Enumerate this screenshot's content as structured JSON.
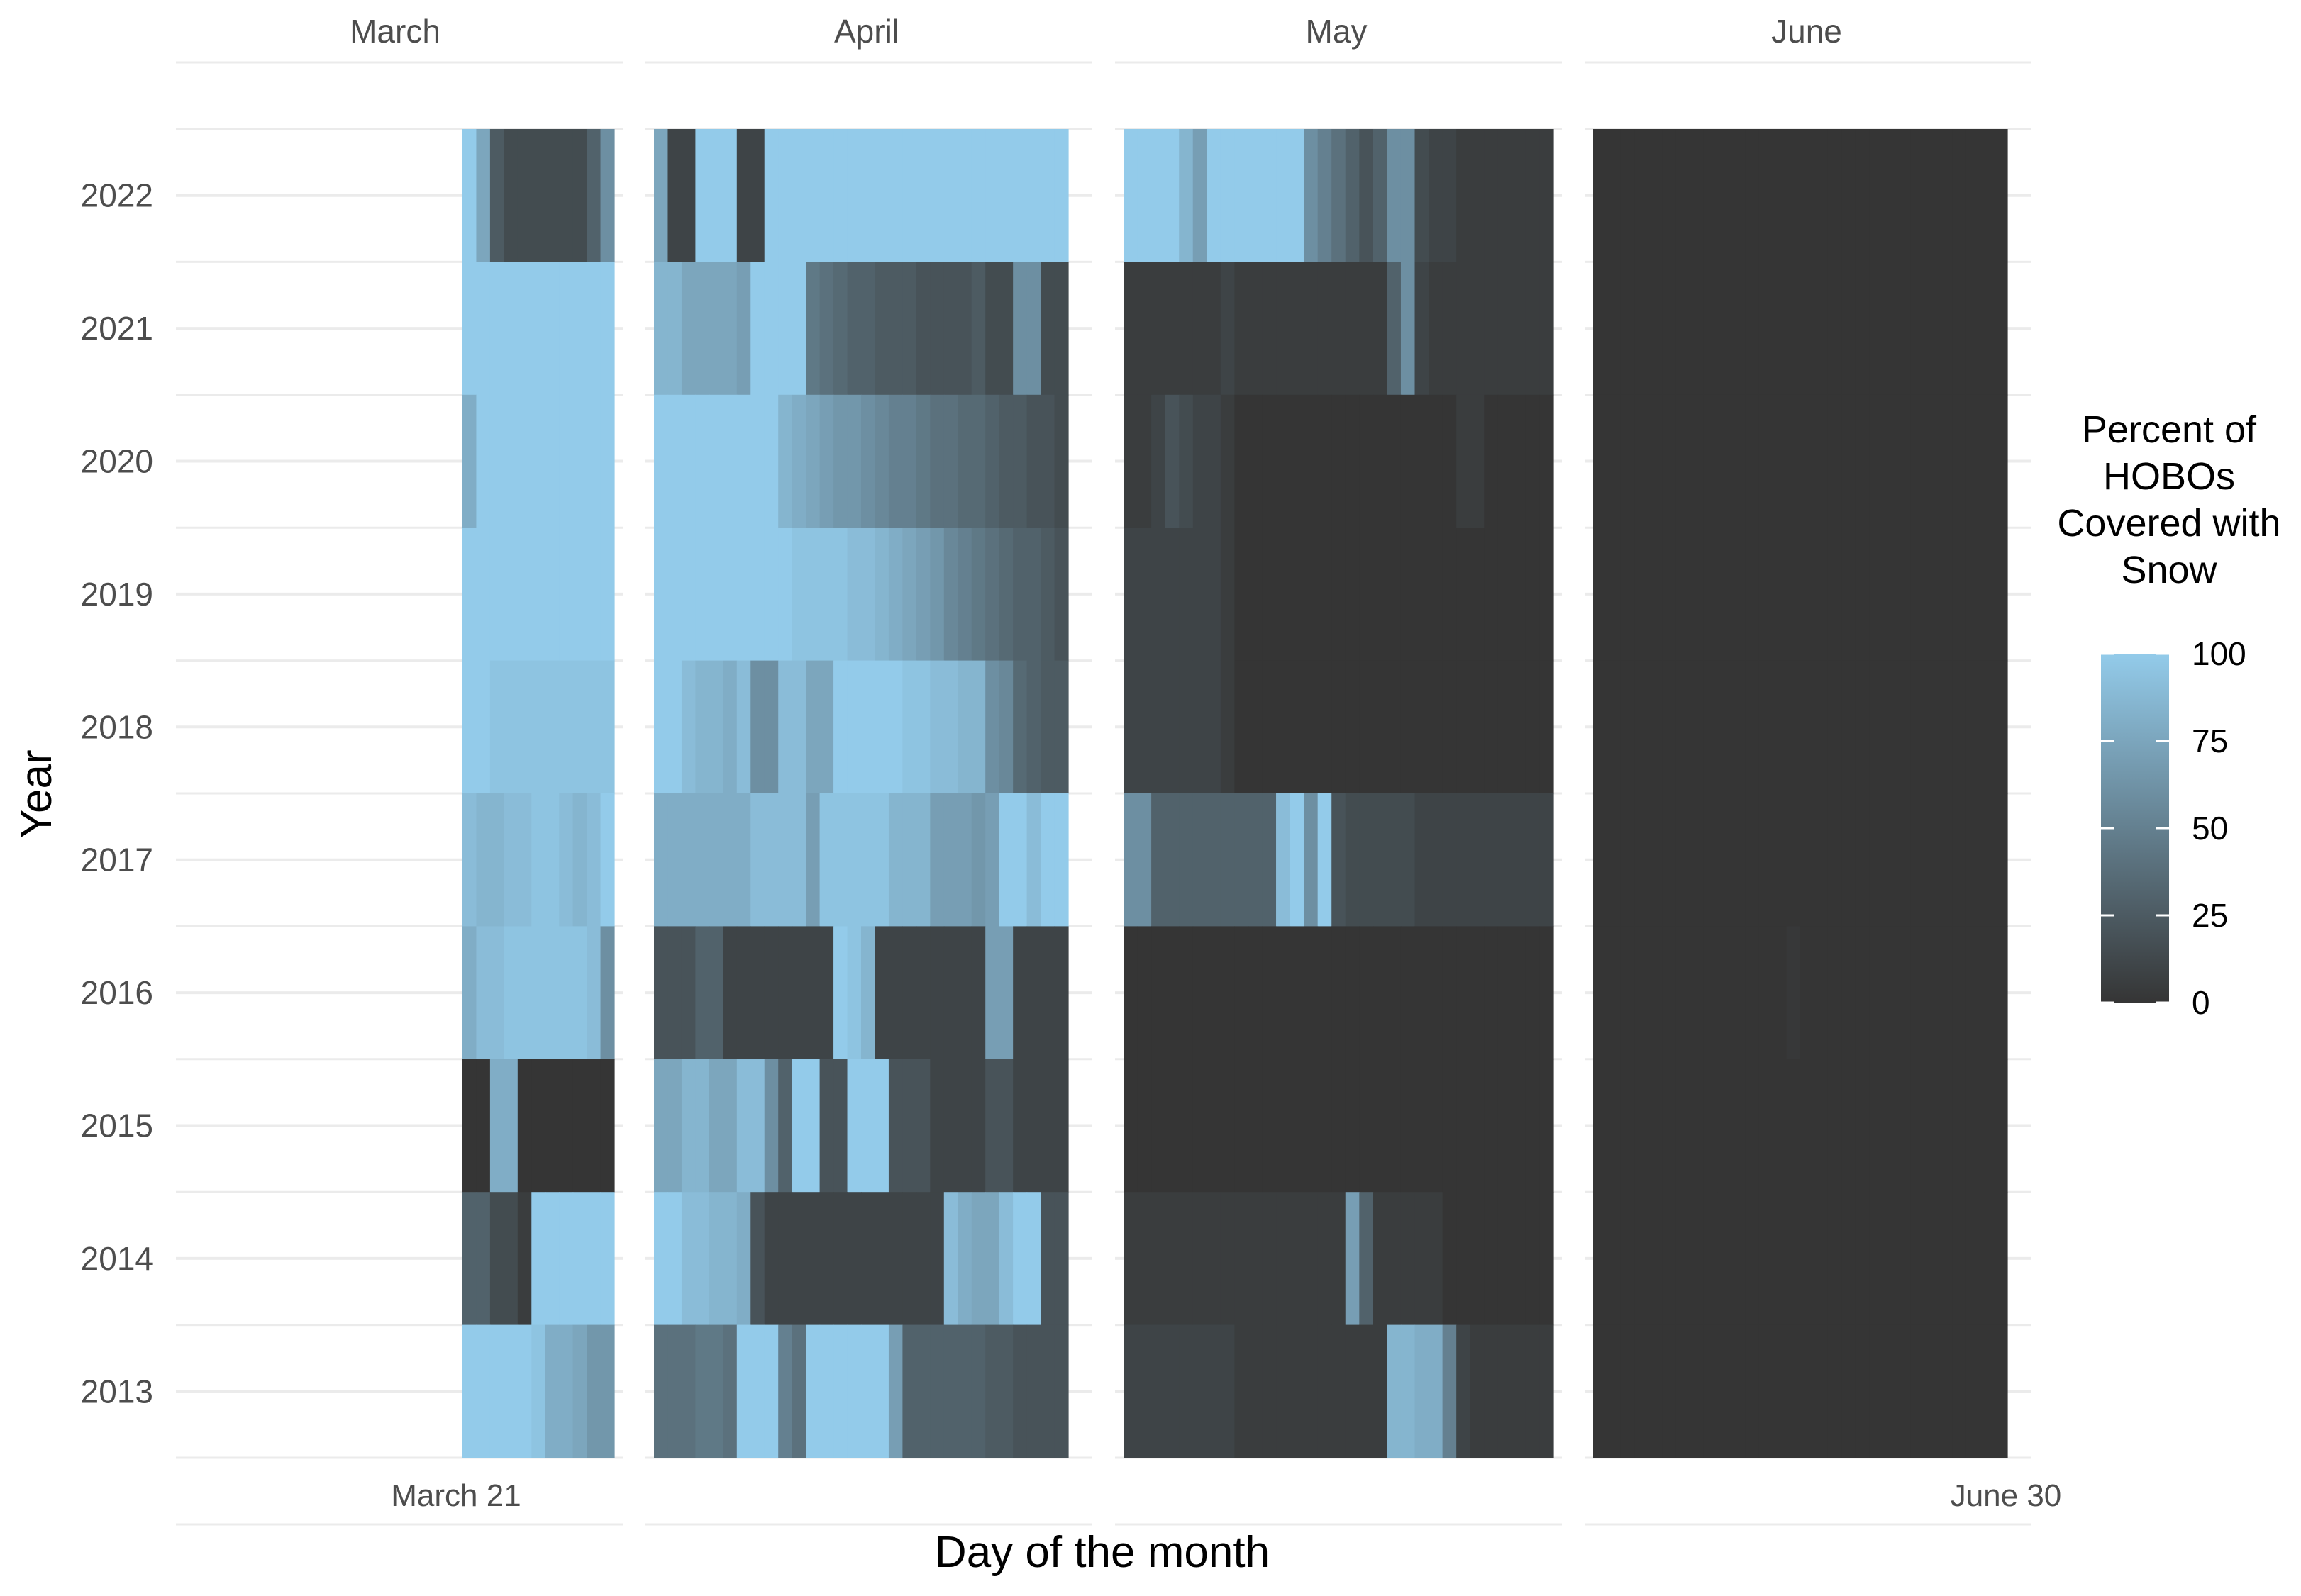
{
  "chart_data": {
    "type": "heatmap",
    "xlabel": "Day of the month",
    "ylabel": "Year",
    "facets": [
      "March",
      "April",
      "May",
      "June"
    ],
    "years": [
      "2013",
      "2014",
      "2015",
      "2016",
      "2017",
      "2018",
      "2019",
      "2020",
      "2021",
      "2022"
    ],
    "x_labels": {
      "start": "March 21",
      "end": "June 30"
    },
    "x_range": [
      "March 21",
      "June 30"
    ],
    "legend": {
      "title": [
        "Percent of",
        "HOBOs",
        "Covered with",
        "Snow"
      ],
      "ticks": [
        0,
        25,
        50,
        75,
        100
      ],
      "range": [
        0,
        100
      ],
      "low_color": "#353535",
      "high_color": "#93cbea",
      "position": "right"
    },
    "grid": true,
    "series": [
      {
        "year": "2022",
        "march": [
          100,
          75,
          25,
          15,
          15,
          15,
          15,
          15,
          15,
          30,
          60
        ],
        "april": [
          75,
          10,
          10,
          100,
          100,
          100,
          10,
          10,
          100,
          100,
          100,
          100,
          100,
          100,
          100,
          100,
          100,
          100,
          100,
          100,
          100,
          100,
          100,
          100,
          100,
          100,
          100,
          100,
          100,
          100
        ],
        "may": [
          100,
          100,
          100,
          100,
          85,
          70,
          100,
          100,
          100,
          100,
          100,
          100,
          100,
          60,
          50,
          40,
          30,
          20,
          30,
          60,
          60,
          15,
          10,
          10,
          5,
          5,
          5,
          5,
          5,
          5,
          5
        ],
        "june": [
          0,
          0,
          0,
          0,
          0,
          0,
          0,
          0,
          0,
          0,
          0,
          0,
          0,
          0,
          0,
          0,
          0,
          0,
          0,
          0,
          0,
          0,
          0,
          0,
          0,
          0,
          0,
          0,
          0,
          0
        ]
      },
      {
        "year": "2021",
        "march": [
          100,
          100,
          100,
          100,
          100,
          100,
          100,
          100,
          100,
          100,
          100
        ],
        "april": [
          85,
          85,
          75,
          75,
          75,
          75,
          70,
          100,
          100,
          100,
          100,
          45,
          40,
          35,
          30,
          30,
          25,
          25,
          25,
          20,
          20,
          20,
          20,
          25,
          15,
          15,
          60,
          60,
          15,
          15
        ],
        "may": [
          5,
          5,
          5,
          5,
          5,
          5,
          5,
          10,
          5,
          5,
          5,
          5,
          5,
          5,
          5,
          5,
          5,
          5,
          5,
          30,
          60,
          10,
          5,
          5,
          5,
          5,
          5,
          5,
          5,
          5,
          5
        ],
        "june": [
          0,
          0,
          0,
          0,
          0,
          0,
          0,
          0,
          0,
          0,
          0,
          0,
          0,
          0,
          0,
          0,
          0,
          0,
          0,
          0,
          0,
          0,
          0,
          0,
          0,
          0,
          0,
          0,
          0,
          0
        ]
      },
      {
        "year": "2020",
        "march": [
          80,
          100,
          100,
          100,
          100,
          100,
          100,
          100,
          100,
          100,
          100
        ],
        "april": [
          100,
          100,
          100,
          100,
          100,
          100,
          100,
          100,
          100,
          85,
          80,
          75,
          70,
          65,
          65,
          60,
          55,
          50,
          50,
          45,
          40,
          40,
          35,
          35,
          30,
          25,
          25,
          20,
          20,
          15
        ],
        "may": [
          5,
          5,
          10,
          20,
          15,
          10,
          10,
          5,
          0,
          0,
          0,
          0,
          0,
          0,
          0,
          0,
          0,
          0,
          0,
          0,
          0,
          0,
          0,
          0,
          5,
          5,
          0,
          0,
          0,
          0,
          0
        ],
        "june": [
          0,
          0,
          0,
          0,
          0,
          0,
          0,
          0,
          0,
          0,
          0,
          0,
          0,
          0,
          0,
          0,
          0,
          0,
          0,
          0,
          0,
          0,
          0,
          0,
          0,
          0,
          0,
          0,
          0,
          0
        ]
      },
      {
        "year": "2019",
        "march": [
          100,
          100,
          100,
          100,
          100,
          100,
          100,
          100,
          100,
          100,
          100
        ],
        "april": [
          100,
          100,
          100,
          100,
          100,
          100,
          100,
          100,
          100,
          100,
          95,
          95,
          95,
          95,
          90,
          90,
          85,
          80,
          75,
          70,
          65,
          55,
          50,
          45,
          40,
          35,
          30,
          30,
          25,
          20
        ],
        "may": [
          10,
          10,
          10,
          10,
          10,
          10,
          10,
          5,
          0,
          0,
          0,
          0,
          0,
          0,
          0,
          0,
          0,
          0,
          0,
          0,
          0,
          0,
          0,
          0,
          0,
          0,
          0,
          0,
          0,
          0,
          0
        ],
        "june": [
          0,
          0,
          0,
          0,
          0,
          0,
          0,
          0,
          0,
          0,
          0,
          0,
          0,
          0,
          0,
          0,
          0,
          0,
          0,
          0,
          0,
          0,
          0,
          0,
          0,
          0,
          0,
          0,
          0,
          0
        ]
      },
      {
        "year": "2018",
        "march": [
          100,
          100,
          95,
          95,
          95,
          95,
          95,
          95,
          95,
          95,
          95
        ],
        "april": [
          100,
          100,
          90,
          85,
          85,
          80,
          90,
          60,
          60,
          90,
          90,
          75,
          75,
          100,
          100,
          100,
          100,
          100,
          95,
          95,
          90,
          90,
          85,
          85,
          60,
          55,
          35,
          30,
          25,
          25
        ],
        "may": [
          10,
          10,
          10,
          10,
          10,
          10,
          10,
          5,
          0,
          0,
          0,
          0,
          0,
          0,
          0,
          0,
          0,
          0,
          0,
          0,
          0,
          0,
          0,
          0,
          0,
          0,
          0,
          0,
          0,
          0,
          0
        ],
        "june": [
          0,
          0,
          0,
          0,
          0,
          0,
          0,
          0,
          0,
          0,
          0,
          0,
          0,
          0,
          0,
          0,
          0,
          0,
          0,
          0,
          0,
          0,
          0,
          0,
          0,
          0,
          0,
          0,
          0,
          0
        ]
      },
      {
        "year": "2017",
        "march": [
          90,
          85,
          85,
          90,
          90,
          95,
          95,
          90,
          85,
          90,
          100
        ],
        "april": [
          80,
          80,
          80,
          80,
          80,
          80,
          80,
          90,
          90,
          90,
          90,
          70,
          95,
          95,
          95,
          95,
          95,
          85,
          85,
          85,
          70,
          70,
          70,
          65,
          70,
          100,
          100,
          90,
          100,
          100
        ],
        "may": [
          60,
          60,
          30,
          30,
          30,
          30,
          30,
          30,
          30,
          30,
          30,
          90,
          100,
          60,
          100,
          20,
          15,
          15,
          15,
          15,
          15,
          10,
          10,
          10,
          10,
          10,
          10,
          10,
          10,
          10,
          10
        ],
        "june": [
          0,
          0,
          0,
          0,
          0,
          0,
          0,
          0,
          0,
          0,
          0,
          0,
          0,
          0,
          0,
          0,
          0,
          0,
          0,
          0,
          0,
          0,
          0,
          0,
          0,
          0,
          0,
          0,
          0,
          0
        ]
      },
      {
        "year": "2016",
        "march": [
          80,
          90,
          90,
          95,
          95,
          95,
          95,
          95,
          95,
          90,
          60
        ],
        "april": [
          20,
          20,
          20,
          30,
          30,
          10,
          10,
          10,
          10,
          10,
          10,
          10,
          10,
          100,
          95,
          85,
          10,
          10,
          10,
          10,
          10,
          10,
          10,
          10,
          70,
          70,
          10,
          10,
          10,
          10
        ],
        "may": [
          0,
          0,
          0,
          0,
          0,
          0,
          0,
          0,
          0,
          0,
          0,
          0,
          0,
          0,
          0,
          0,
          0,
          0,
          0,
          0,
          0,
          0,
          0,
          0,
          0,
          0,
          0,
          0,
          0,
          0,
          0
        ],
        "june": [
          0,
          0,
          0,
          0,
          0,
          0,
          0,
          0,
          0,
          0,
          0,
          0,
          0,
          0,
          2,
          0,
          0,
          0,
          0,
          0,
          0,
          0,
          0,
          0,
          0,
          0,
          0,
          0,
          0,
          0
        ]
      },
      {
        "year": "2015",
        "march": [
          0,
          0,
          80,
          80,
          0,
          0,
          0,
          0,
          0,
          0,
          0
        ],
        "april": [
          75,
          75,
          85,
          85,
          75,
          75,
          90,
          90,
          60,
          30,
          100,
          100,
          20,
          20,
          100,
          100,
          100,
          20,
          20,
          20,
          10,
          10,
          10,
          10,
          20,
          20,
          10,
          10,
          10,
          10
        ],
        "may": [
          0,
          0,
          0,
          0,
          0,
          0,
          0,
          0,
          0,
          0,
          0,
          0,
          0,
          0,
          0,
          0,
          0,
          0,
          0,
          0,
          0,
          0,
          0,
          0,
          0,
          0,
          0,
          0,
          0,
          0,
          0
        ],
        "june": [
          0,
          0,
          0,
          0,
          0,
          0,
          0,
          0,
          0,
          0,
          0,
          0,
          0,
          0,
          0,
          0,
          0,
          0,
          0,
          0,
          0,
          0,
          0,
          0,
          0,
          0,
          0,
          0,
          0,
          0
        ]
      },
      {
        "year": "2014",
        "march": [
          30,
          30,
          15,
          15,
          5,
          100,
          100,
          100,
          100,
          100,
          100
        ],
        "april": [
          100,
          100,
          90,
          90,
          85,
          85,
          80,
          20,
          10,
          10,
          10,
          10,
          10,
          10,
          10,
          10,
          10,
          10,
          10,
          10,
          10,
          90,
          80,
          75,
          75,
          90,
          100,
          100,
          20,
          20
        ],
        "may": [
          5,
          5,
          5,
          5,
          5,
          5,
          5,
          5,
          5,
          5,
          5,
          5,
          5,
          5,
          5,
          5,
          70,
          30,
          5,
          5,
          5,
          5,
          5,
          0,
          0,
          0,
          0,
          0,
          0,
          0,
          0
        ],
        "june": [
          0,
          0,
          0,
          0,
          0,
          0,
          0,
          0,
          0,
          0,
          0,
          0,
          0,
          0,
          0,
          0,
          0,
          0,
          0,
          0,
          0,
          0,
          0,
          0,
          0,
          0,
          0,
          0,
          0,
          0
        ]
      },
      {
        "year": "2013",
        "march": [
          100,
          100,
          100,
          100,
          100,
          95,
          80,
          80,
          75,
          65,
          65
        ],
        "april": [
          40,
          40,
          40,
          45,
          45,
          40,
          100,
          100,
          100,
          50,
          40,
          100,
          100,
          100,
          100,
          100,
          100,
          70,
          30,
          30,
          30,
          30,
          30,
          30,
          25,
          25,
          20,
          20,
          20,
          20
        ],
        "may": [
          10,
          10,
          10,
          10,
          10,
          10,
          10,
          10,
          5,
          5,
          5,
          5,
          5,
          5,
          5,
          5,
          5,
          5,
          5,
          85,
          85,
          80,
          80,
          50,
          10,
          5,
          5,
          5,
          5,
          5,
          5
        ],
        "june": [
          0,
          0,
          0,
          0,
          0,
          0,
          0,
          0,
          0,
          0,
          0,
          0,
          0,
          0,
          0,
          0,
          0,
          0,
          0,
          0,
          0,
          0,
          0,
          0,
          0,
          0,
          0,
          0,
          0,
          0
        ]
      }
    ]
  }
}
